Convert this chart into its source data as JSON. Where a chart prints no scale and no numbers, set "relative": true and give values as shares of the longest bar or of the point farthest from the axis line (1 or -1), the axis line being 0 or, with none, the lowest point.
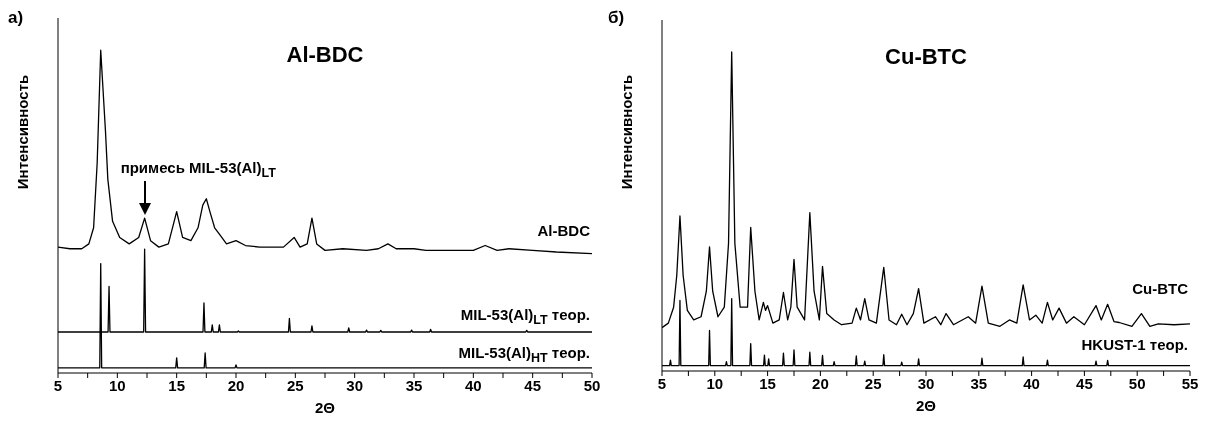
{
  "chart_data": [
    {
      "type": "line",
      "title": "Al-BDC",
      "xlabel": "2Θ",
      "ylabel": "Интенсивность",
      "relative": true,
      "annotations": [
        "а)",
        {
          "text": "примесь MIL-53(Al)$_{LT}$",
          "x": 12.3,
          "y": 0.48
        }
      ],
      "xlim": [
        5,
        50
      ],
      "xticks": [
        5,
        {
          "value": 7.5,
          "label": null
        },
        10,
        {
          "value": 12.5,
          "label": null
        },
        15,
        {
          "value": 17.5,
          "label": null
        },
        20,
        {
          "value": 22.5,
          "label": null
        },
        25,
        {
          "value": 27.5,
          "label": null
        },
        30,
        {
          "value": 32.5,
          "label": null
        },
        35,
        {
          "value": 37.5,
          "label": null
        },
        40,
        {
          "value": 42.5,
          "label": null
        },
        45,
        {
          "value": 47.5,
          "label": null
        },
        50
      ],
      "series": [
        {
          "name": "Al-BDC",
          "color": "#000000",
          "x": [
            5,
            6,
            7,
            7.6,
            8.0,
            8.3,
            8.6,
            9.0,
            9.2,
            9.6,
            10.2,
            11,
            11.8,
            12.3,
            12.8,
            13.5,
            14.3,
            15.0,
            15.5,
            16.2,
            16.8,
            17.2,
            17.5,
            17.8,
            18.2,
            18.6,
            19.2,
            20.0,
            20.8,
            22,
            24,
            24.9,
            25.4,
            26.0,
            26.4,
            26.8,
            27.5,
            29,
            31,
            32,
            32.8,
            33.5,
            35,
            36,
            38,
            40,
            41,
            42,
            43,
            45,
            47,
            50
          ],
          "values": [
            0.39,
            0.385,
            0.385,
            0.4,
            0.45,
            0.65,
            1.0,
            0.75,
            0.6,
            0.47,
            0.42,
            0.4,
            0.42,
            0.48,
            0.41,
            0.39,
            0.4,
            0.5,
            0.42,
            0.41,
            0.45,
            0.52,
            0.54,
            0.5,
            0.45,
            0.43,
            0.4,
            0.41,
            0.395,
            0.39,
            0.39,
            0.42,
            0.39,
            0.4,
            0.48,
            0.4,
            0.38,
            0.385,
            0.38,
            0.385,
            0.4,
            0.385,
            0.385,
            0.38,
            0.38,
            0.38,
            0.395,
            0.38,
            0.385,
            0.38,
            0.375,
            0.37
          ]
        },
        {
          "name": "MIL-53(Al)$_{LT}$ теор.",
          "color": "#000000",
          "x": [
            5,
            9.22,
            9.3,
            9.38,
            12.22,
            12.3,
            12.38,
            17.22,
            17.3,
            17.38,
            17.92,
            18.0,
            18.08,
            18.52,
            18.6,
            18.68,
            20.12,
            20.2,
            20.28,
            24.42,
            24.5,
            24.58,
            26.32,
            26.4,
            26.48,
            29.42,
            29.5,
            29.58,
            30.92,
            31.0,
            31.08,
            32.12,
            32.2,
            32.28,
            34.72,
            34.8,
            34.88,
            36.32,
            36.4,
            36.48,
            44.42,
            44.5,
            44.58,
            50
          ],
          "values": [
            0.127,
            0.127,
            0.268,
            0.127,
            0.127,
            0.384,
            0.127,
            0.127,
            0.217,
            0.127,
            0.127,
            0.149,
            0.127,
            0.127,
            0.149,
            0.127,
            0.127,
            0.13,
            0.127,
            0.127,
            0.169,
            0.127,
            0.127,
            0.146,
            0.127,
            0.127,
            0.14,
            0.127,
            0.127,
            0.133,
            0.127,
            0.127,
            0.132,
            0.127,
            0.127,
            0.133,
            0.127,
            0.127,
            0.135,
            0.127,
            0.127,
            0.132,
            0.127,
            0.127
          ]
        },
        {
          "name": "MIL-53(Al)$_{HT}$ теор.",
          "color": "#000000",
          "x": [
            5,
            8.52,
            8.6,
            8.68,
            14.92,
            15.0,
            15.08,
            17.32,
            17.4,
            17.48,
            19.92,
            20.0,
            20.08,
            50
          ],
          "values": [
            0.016,
            0.016,
            0.339,
            0.016,
            0.016,
            0.047,
            0.016,
            0.016,
            0.062,
            0.016,
            0.016,
            0.025,
            0.016,
            0.016
          ]
        }
      ]
    },
    {
      "type": "line",
      "title": "Cu-BTC",
      "xlabel": "2Θ",
      "ylabel": "Интенсивность",
      "relative": true,
      "annotations": [
        "б)"
      ],
      "xlim": [
        5,
        55
      ],
      "xticks": [
        5,
        {
          "value": 7.5,
          "label": null
        },
        10,
        {
          "value": 12.5,
          "label": null
        },
        15,
        {
          "value": 17.5,
          "label": null
        },
        20,
        {
          "value": 22.5,
          "label": null
        },
        25,
        {
          "value": 27.5,
          "label": null
        },
        30,
        {
          "value": 32.5,
          "label": null
        },
        35,
        {
          "value": 37.5,
          "label": null
        },
        40,
        {
          "value": 42.5,
          "label": null
        },
        45,
        {
          "value": 47.5,
          "label": null
        },
        50,
        {
          "value": 52.5,
          "label": null
        },
        55
      ],
      "series": [
        {
          "name": "Cu-BTC",
          "color": "#000000",
          "x": [
            5,
            5.6,
            6.1,
            6.4,
            6.7,
            7.0,
            7.4,
            8.0,
            8.7,
            9.2,
            9.5,
            9.8,
            10.3,
            10.9,
            11.3,
            11.6,
            11.9,
            12.4,
            13.1,
            13.4,
            13.8,
            14.2,
            14.6,
            14.8,
            15.0,
            15.5,
            16.1,
            16.5,
            16.9,
            17.2,
            17.5,
            17.8,
            18.5,
            19.0,
            19.4,
            19.9,
            20.2,
            20.6,
            21.3,
            22,
            23.0,
            23.4,
            23.8,
            24.2,
            24.6,
            25.3,
            26.0,
            26.5,
            27.2,
            27.7,
            28.2,
            28.8,
            29.3,
            29.8,
            30.9,
            31.4,
            31.9,
            32.6,
            34.0,
            34.7,
            35.3,
            35.9,
            37.0,
            37.9,
            38.6,
            39.2,
            39.8,
            40.4,
            41.0,
            41.5,
            42.0,
            42.6,
            43.3,
            44.0,
            45.0,
            46.1,
            46.6,
            47.2,
            47.8,
            48.3,
            49.5,
            50.4,
            51.2,
            52.0,
            53.5,
            55
          ],
          "values": [
            0.136,
            0.15,
            0.2,
            0.3,
            0.486,
            0.3,
            0.19,
            0.16,
            0.17,
            0.25,
            0.389,
            0.25,
            0.17,
            0.2,
            0.4,
            1.0,
            0.4,
            0.2,
            0.2,
            0.45,
            0.25,
            0.16,
            0.215,
            0.19,
            0.205,
            0.15,
            0.16,
            0.246,
            0.16,
            0.2,
            0.35,
            0.2,
            0.16,
            0.496,
            0.25,
            0.16,
            0.328,
            0.18,
            0.16,
            0.145,
            0.15,
            0.197,
            0.16,
            0.227,
            0.16,
            0.15,
            0.325,
            0.16,
            0.145,
            0.178,
            0.145,
            0.18,
            0.258,
            0.15,
            0.17,
            0.145,
            0.18,
            0.145,
            0.17,
            0.15,
            0.266,
            0.15,
            0.14,
            0.16,
            0.15,
            0.27,
            0.16,
            0.175,
            0.15,
            0.215,
            0.16,
            0.197,
            0.15,
            0.17,
            0.145,
            0.205,
            0.16,
            0.209,
            0.155,
            0.152,
            0.14,
            0.18,
            0.14,
            0.148,
            0.145,
            0.148
          ]
        },
        {
          "name": "HKUST-1 теор.",
          "color": "#000000",
          "x": [
            5,
            5.72,
            5.8,
            5.88,
            6.62,
            6.7,
            6.78,
            9.42,
            9.5,
            9.58,
            11.02,
            11.1,
            11.18,
            11.52,
            11.6,
            11.68,
            13.32,
            13.4,
            13.48,
            14.62,
            14.7,
            14.78,
            15.02,
            15.1,
            15.18,
            16.42,
            16.5,
            16.58,
            17.42,
            17.5,
            17.58,
            18.92,
            19.0,
            19.08,
            20.12,
            20.2,
            20.28,
            21.22,
            21.3,
            21.38,
            23.32,
            23.4,
            23.48,
            24.12,
            24.2,
            24.28,
            25.92,
            26.0,
            26.08,
            27.62,
            27.7,
            27.78,
            29.22,
            29.3,
            29.38,
            35.22,
            35.3,
            35.38,
            39.12,
            39.2,
            39.28,
            41.42,
            41.5,
            41.58,
            46.02,
            46.1,
            46.18,
            47.12,
            47.2,
            47.28,
            55
          ],
          "values": [
            0.017,
            0.017,
            0.034,
            0.017,
            0.017,
            0.221,
            0.017,
            0.017,
            0.127,
            0.017,
            0.017,
            0.029,
            0.017,
            0.017,
            0.227,
            0.017,
            0.017,
            0.086,
            0.017,
            0.017,
            0.05,
            0.017,
            0.017,
            0.038,
            0.017,
            0.017,
            0.056,
            0.017,
            0.017,
            0.066,
            0.017,
            0.017,
            0.059,
            0.017,
            0.017,
            0.049,
            0.017,
            0.017,
            0.029,
            0.017,
            0.017,
            0.047,
            0.017,
            0.017,
            0.031,
            0.017,
            0.017,
            0.051,
            0.017,
            0.017,
            0.028,
            0.017,
            0.017,
            0.038,
            0.017,
            0.017,
            0.04,
            0.017,
            0.017,
            0.044,
            0.017,
            0.017,
            0.034,
            0.017,
            0.017,
            0.031,
            0.017,
            0.017,
            0.033,
            0.017,
            0.017
          ]
        }
      ]
    }
  ]
}
